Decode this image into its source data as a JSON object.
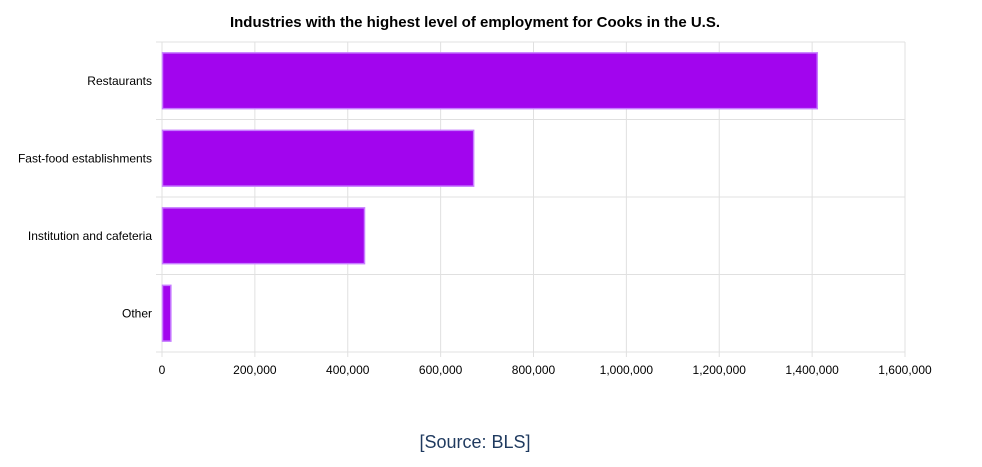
{
  "chart_data": {
    "type": "bar",
    "orientation": "horizontal",
    "title": "Industries with the highest level of employment for Cooks in the U.S.",
    "categories": [
      "Restaurants",
      "Fast-food establishments",
      "Institution and cafeteria",
      "Other"
    ],
    "values": [
      1410000,
      670000,
      435000,
      18000
    ],
    "xlim": [
      0,
      1600000
    ],
    "x_ticks": [
      "0",
      "200,000",
      "400,000",
      "600,000",
      "800,000",
      "1,000,000",
      "1,200,000",
      "1,400,000",
      "1,600,000"
    ],
    "x_tick_values": [
      0,
      200000,
      400000,
      600000,
      800000,
      1000000,
      1200000,
      1400000,
      1600000
    ],
    "xlabel": "",
    "ylabel": "",
    "grid": true,
    "bar_color": "#a205ee",
    "bar_border_color": "#c77dff"
  },
  "source": "[Source: BLS]"
}
